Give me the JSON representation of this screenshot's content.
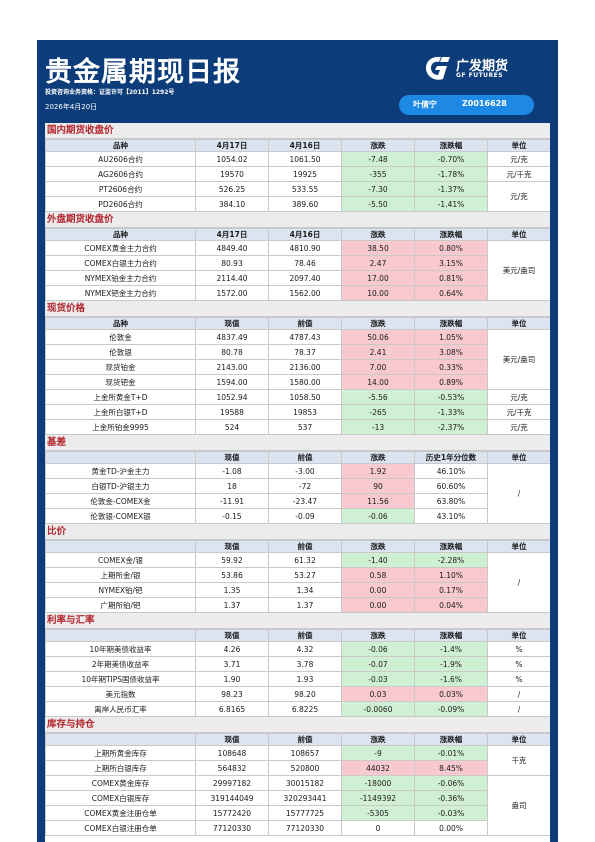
{
  "header": {
    "title": "贵金属期现日报",
    "license": "投资咨询业务资格：证监许可【2011】1292号",
    "date": "2026年4月20日",
    "logo_cn": "广发期货",
    "logo_en": "GF FUTURES",
    "analyst_name": "叶倩宁",
    "analyst_id": "Z0016628"
  },
  "colors": {
    "frame": "#0c3d7a",
    "section_title": "#b3262e",
    "down": "#d0f0d4",
    "up": "#f8c9ce",
    "badge": "#1e88e5"
  },
  "sections": [
    {
      "title": "国内期货收盘价",
      "headers": [
        "品种",
        "4月17日",
        "4月16日",
        "涨跌",
        "涨跌幅",
        "单位"
      ],
      "rows": [
        [
          "AU2606合约",
          "1054.02",
          "1061.50",
          "-7.48",
          "-0.70%",
          "元/克"
        ],
        [
          "AG2606合约",
          "19570",
          "19925",
          "-355",
          "-1.78%",
          "元/千克"
        ],
        [
          "PT2606合约",
          "526.25",
          "533.55",
          "-7.30",
          "-1.37%",
          "元/克"
        ],
        [
          "PD2606合约",
          "384.10",
          "389.60",
          "-5.50",
          "-1.41%",
          ""
        ]
      ]
    },
    {
      "title": "外盘期货收盘价",
      "headers": [
        "品种",
        "4月17日",
        "4月16日",
        "涨跌",
        "涨跌幅",
        "单位"
      ],
      "rows": [
        [
          "COMEX黄金主力合约",
          "4849.40",
          "4810.90",
          "38.50",
          "0.80%",
          "美元/盎司"
        ],
        [
          "COMEX白银主力合约",
          "80.93",
          "78.46",
          "2.47",
          "3.15%",
          ""
        ],
        [
          "NYMEX铂金主力合约",
          "2114.40",
          "2097.40",
          "17.00",
          "0.81%",
          ""
        ],
        [
          "NYMEX钯金主力合约",
          "1572.00",
          "1562.00",
          "10.00",
          "0.64%",
          ""
        ]
      ]
    },
    {
      "title": "现货价格",
      "headers": [
        "品种",
        "现值",
        "前值",
        "涨跌",
        "涨跌幅",
        "单位"
      ],
      "rows": [
        [
          "伦敦金",
          "4837.49",
          "4787.43",
          "50.06",
          "1.05%",
          "美元/盎司"
        ],
        [
          "伦敦银",
          "80.78",
          "78.37",
          "2.41",
          "3.08%",
          ""
        ],
        [
          "现货铂金",
          "2143.00",
          "2136.00",
          "7.00",
          "0.33%",
          ""
        ],
        [
          "现货钯金",
          "1594.00",
          "1580.00",
          "14.00",
          "0.89%",
          ""
        ],
        [
          "上金所黄金T+D",
          "1052.94",
          "1058.50",
          "-5.56",
          "-0.53%",
          "元/克"
        ],
        [
          "上金所白银T+D",
          "19588",
          "19853",
          "-265",
          "-1.33%",
          "元/千克"
        ],
        [
          "上金所铂金9995",
          "524",
          "537",
          "-13",
          "-2.37%",
          "元/克"
        ]
      ]
    },
    {
      "title": "基差",
      "headers": [
        "",
        "现值",
        "前值",
        "涨跌",
        "历史1年分位数",
        "单位"
      ],
      "rows": [
        [
          "黄金TD-沪金主力",
          "-1.08",
          "-3.00",
          "1.92",
          "46.10%",
          "/"
        ],
        [
          "白银TD-沪银主力",
          "18",
          "-72",
          "90",
          "60.60%",
          ""
        ],
        [
          "伦敦金-COMEX金",
          "-11.91",
          "-23.47",
          "11.56",
          "63.80%",
          ""
        ],
        [
          "伦敦银-COMEX银",
          "-0.15",
          "-0.09",
          "-0.06",
          "43.10%",
          ""
        ]
      ]
    },
    {
      "title": "比价",
      "headers": [
        "",
        "现值",
        "前值",
        "涨跌",
        "涨跌幅",
        "单位"
      ],
      "rows": [
        [
          "COMEX金/银",
          "59.92",
          "61.32",
          "-1.40",
          "-2.28%",
          "/"
        ],
        [
          "上期所金/银",
          "53.86",
          "53.27",
          "0.58",
          "1.10%",
          ""
        ],
        [
          "NYMEX铂/钯",
          "1.35",
          "1.34",
          "0.00",
          "0.17%",
          ""
        ],
        [
          "广期所铂/钯",
          "1.37",
          "1.37",
          "0.00",
          "0.04%",
          ""
        ]
      ]
    },
    {
      "title": "利率与汇率",
      "headers": [
        "",
        "现值",
        "前值",
        "涨跌",
        "涨跌幅",
        "单位"
      ],
      "rows": [
        [
          "10年期美债收益率",
          "4.26",
          "4.32",
          "-0.06",
          "-1.4%",
          "%"
        ],
        [
          "2年期美债收益率",
          "3.71",
          "3.78",
          "-0.07",
          "-1.9%",
          "%"
        ],
        [
          "10年期TIPS国债收益率",
          "1.90",
          "1.93",
          "-0.03",
          "-1.6%",
          "%"
        ],
        [
          "美元指数",
          "98.23",
          "98.20",
          "0.03",
          "0.03%",
          "/"
        ],
        [
          "离岸人民币汇率",
          "6.8165",
          "6.8225",
          "-0.0060",
          "-0.09%",
          "/"
        ]
      ]
    },
    {
      "title": "库存与持仓",
      "headers": [
        "",
        "现值",
        "前值",
        "涨跌",
        "涨跌幅",
        "单位"
      ],
      "rows": [
        [
          "上期所黄金库存",
          "108648",
          "108657",
          "-9",
          "-0.01%",
          "千克"
        ],
        [
          "上期所白银库存",
          "564832",
          "520800",
          "44032",
          "8.45%",
          ""
        ],
        [
          "COMEX黄金库存",
          "29997182",
          "30015182",
          "-18000",
          "-0.06%",
          "盎司"
        ],
        [
          "COMEX白银库存",
          "319144049",
          "320293441",
          "-1149392",
          "-0.36%",
          ""
        ],
        [
          "COMEX黄金注册仓单",
          "15772420",
          "15777725",
          "-5305",
          "-0.03%",
          ""
        ],
        [
          "COMEX白银注册仓单",
          "77120330",
          "77120330",
          "0",
          "0.00%",
          ""
        ]
      ]
    }
  ],
  "unit_spans": [
    [
      [
        0,
        1
      ],
      [
        1,
        1
      ],
      [
        2,
        2
      ]
    ],
    [
      [
        0,
        4
      ]
    ],
    [
      [
        0,
        4
      ],
      [
        4,
        1
      ],
      [
        5,
        1
      ],
      [
        6,
        1
      ]
    ],
    [
      [
        0,
        4
      ]
    ],
    [
      [
        0,
        4
      ]
    ],
    [
      [
        0,
        1
      ],
      [
        1,
        1
      ],
      [
        2,
        1
      ],
      [
        3,
        1
      ],
      [
        4,
        1
      ]
    ],
    [
      [
        0,
        2
      ],
      [
        2,
        4
      ]
    ]
  ]
}
